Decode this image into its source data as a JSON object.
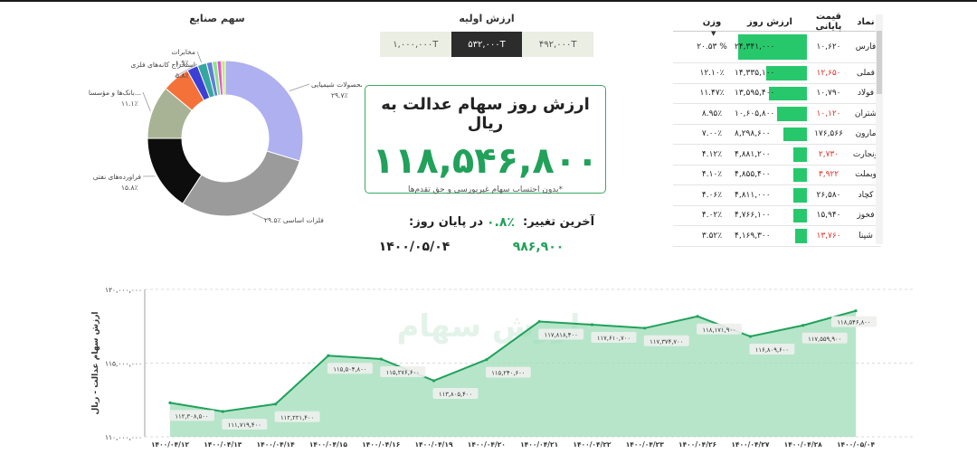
{
  "donut": {
    "title": "سهم صنایع",
    "slices": [
      {
        "label": "محصولات شیمیایی",
        "pct_label": "۲۹.۷٪",
        "value": 29.7,
        "color": "#aeb0f0"
      },
      {
        "label": "فلزات اساسی",
        "pct_label": "۲۹.۵٪",
        "value": 29.5,
        "color": "#9b9b9b"
      },
      {
        "label": "فراورده‌های نفتی",
        "pct_label": "۱۵.۸٪",
        "value": 15.8,
        "color": "#0d0d0d"
      },
      {
        "label": "بانک‌ها و مؤسسا...",
        "pct_label": "۱۱.۱٪",
        "value": 11.1,
        "color": "#a8b396"
      },
      {
        "label": "استخراج کانه‌های فلزی",
        "pct_label": "۵.۸٪",
        "value": 5.8,
        "color": "#f5713a"
      },
      {
        "label": "",
        "pct_label": "",
        "value": 2.3,
        "color": "#3b3fd6"
      },
      {
        "label": "مخابرات",
        "pct_label": "۱.۹٪",
        "value": 1.9,
        "color": "#35a6a0"
      },
      {
        "label": "",
        "pct_label": "",
        "value": 1.2,
        "color": "#5e7fd6"
      },
      {
        "label": "",
        "pct_label": "",
        "value": 1.0,
        "color": "#8ee08d"
      },
      {
        "label": "",
        "pct_label": "",
        "value": 0.9,
        "color": "#e05ac8"
      },
      {
        "label": "",
        "pct_label": "",
        "value": 0.8,
        "color": "#c9e87e"
      }
    ]
  },
  "initial_value": {
    "title": "ارزش اولیه",
    "options": [
      "۴۹۲,۰۰۰T",
      "۵۳۲,۰۰۰T",
      "۱,۰۰۰,۰۰۰T"
    ],
    "selected": "۵۳۲,۰۰۰T"
  },
  "card": {
    "title": "ارزش روز سهام عدالت به ریال",
    "value": "۱۱۸,۵۴۶,۸۰۰",
    "note": "*بدون احتساب سهام غیربورسی و حق تقدم‌ها"
  },
  "change": {
    "label": "آخرین تغییر:",
    "pct": "۰.۸٪",
    "eod_label": "در پایان روز:",
    "eod_value": "۹۸۶,۹۰۰",
    "date": "۱۴۰۰/۰۵/۰۴"
  },
  "table": {
    "headers": [
      "نماد",
      "قیمت پایانی",
      "ارزش روز",
      "وزن"
    ],
    "rows": [
      {
        "symbol": "فارس",
        "price": "۱۰,۶۲۰",
        "price_red": false,
        "value": "۲۴,۳۴۱,۰۰۰",
        "value_num": 24341000,
        "weight": "۲۰.۵۳ %"
      },
      {
        "symbol": "فملی",
        "price": "۱۲,۶۵۰",
        "price_red": true,
        "value": "۱۴,۳۳۵,۱۰۰",
        "value_num": 14335100,
        "weight": "۱۲.۱۰٪"
      },
      {
        "symbol": "فولاد",
        "price": "۱۰,۷۹۰",
        "price_red": false,
        "value": "۱۳,۵۹۵,۴۰۰",
        "value_num": 13595400,
        "weight": "۱۱.۴۷٪"
      },
      {
        "symbol": "شتران",
        "price": "۱۰,۱۲۰",
        "price_red": true,
        "value": "۱۰,۶۰۵,۸۰۰",
        "value_num": 10605800,
        "weight": "۸.۹۵٪"
      },
      {
        "symbol": "مارون",
        "price": "۱۷۶,۵۶۶",
        "price_red": false,
        "value": "۸,۲۹۸,۶۰۰",
        "value_num": 8298600,
        "weight": "۷.۰۰٪"
      },
      {
        "symbol": "ونجارت",
        "price": "۲,۷۳۰",
        "price_red": true,
        "value": "۴,۸۸۱,۲۰۰",
        "value_num": 4881200,
        "weight": "۴.۱۲٪"
      },
      {
        "symbol": "وبملت",
        "price": "۳,۹۲۲",
        "price_red": true,
        "value": "۴,۸۵۵,۴۰۰",
        "value_num": 4855400,
        "weight": "۴.۱۰٪"
      },
      {
        "symbol": "کچاد",
        "price": "۲۶,۵۸۰",
        "price_red": false,
        "value": "۴,۸۱۱,۰۰۰",
        "value_num": 4811000,
        "weight": "۴.۰۶٪"
      },
      {
        "symbol": "فخوز",
        "price": "۱۵,۹۴۰",
        "price_red": false,
        "value": "۴,۷۶۶,۱۰۰",
        "value_num": 4766100,
        "weight": "۴.۰۲٪"
      },
      {
        "symbol": "شپنا",
        "price": "۱۳,۷۶۰",
        "price_red": true,
        "value": "۴,۱۶۹,۳۰۰",
        "value_num": 4169300,
        "weight": "۳.۵۲٪"
      }
    ]
  },
  "chart_data": {
    "type": "area",
    "ylabel": "ارزش سهام عدالت - ریال",
    "ylim": [
      110000000,
      120000000
    ],
    "ytick_labels": [
      "۱۲۰,۰۰۰,۰۰۰",
      "۱۱۵,۰۰۰,۰۰۰",
      "۱۱۰,۰۰۰,۰۰۰"
    ],
    "x": [
      "۱۴۰۰/۰۴/۱۲",
      "۱۴۰۰/۰۴/۱۳",
      "۱۴۰۰/۰۴/۱۴",
      "۱۴۰۰/۰۴/۱۵",
      "۱۴۰۰/۰۴/۱۶",
      "۱۴۰۰/۰۴/۱۹",
      "۱۴۰۰/۰۴/۲۰",
      "۱۴۰۰/۰۴/۲۱",
      "۱۴۰۰/۰۴/۲۲",
      "۱۴۰۰/۰۴/۲۳",
      "۱۴۰۰/۰۴/۲۶",
      "۱۴۰۰/۰۴/۲۷",
      "۱۴۰۰/۰۴/۲۸",
      "۱۴۰۰/۰۵/۰۴"
    ],
    "values": [
      112308500,
      111719400,
      112221400,
      115504800,
      115276600,
      113805400,
      115240600,
      117818400,
      117610700,
      117374700,
      118171900,
      116809600,
      117559900,
      118546800
    ],
    "value_labels": [
      "۱۱۲,۳۰۸,۵۰۰",
      "۱۱۱,۷۱۹,۴۰۰",
      "۱۱۲,۲۲۱,۴۰۰",
      "۱۱۵,۵۰۴,۸۰۰",
      "۱۱۵,۲۷۶,۶۰۰",
      "۱۱۳,۸۰۵,۴۰۰",
      "۱۱۵,۲۴۰,۶۰۰",
      "۱۱۷,۸۱۸,۴۰۰",
      "۱۱۷,۶۱۰,۷۰۰",
      "۱۱۷,۳۷۴,۷۰۰",
      "۱۱۸,۱۷۱,۹۰۰",
      "۱۱۶,۸۰۹,۶۰۰",
      "۱۱۷,۵۵۹,۹۰۰",
      "۱۱۸,۵۴۶,۸۰۰"
    ],
    "colors": {
      "line": "#21a15a",
      "fill": "#9ddcb8"
    }
  }
}
